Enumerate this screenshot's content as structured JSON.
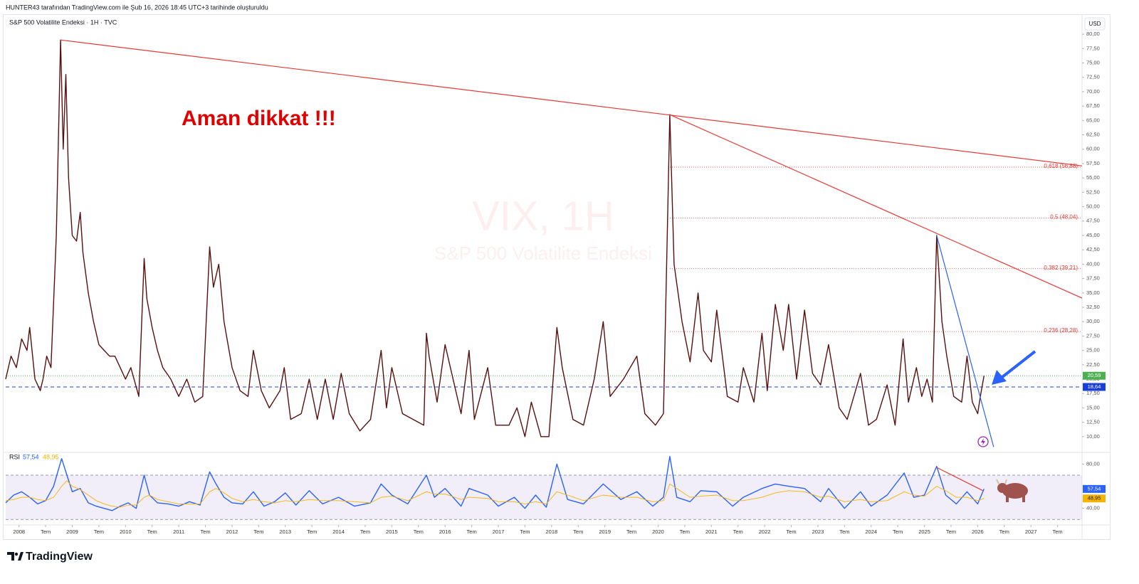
{
  "header": "HUNTER43 tarafından TradingView.com ile Şub 16, 2026 18:45 UTC+3 tarihinde oluşturuldu",
  "footer": "TradingView",
  "chart_data": [
    {
      "type": "line",
      "title": "S&P 500 Volatilite Endeksi · 1H · TVC",
      "watermark": "VIX, 1H",
      "watermark_subtitle": "S&P 500 Volatilite Endeksi",
      "currency": "USD",
      "annotation": "Aman dikkat !!!",
      "grid": false,
      "xlim": [
        2007.75,
        2027.96
      ],
      "ylim": [
        8,
        81
      ],
      "x": [
        2007.75,
        2007.85,
        2007.95,
        2008.05,
        2008.15,
        2008.2,
        2008.3,
        2008.4,
        2008.45,
        2008.52,
        2008.6,
        2008.7,
        2008.78,
        2008.83,
        2008.88,
        2008.93,
        2009.0,
        2009.08,
        2009.15,
        2009.2,
        2009.3,
        2009.4,
        2009.5,
        2009.6,
        2009.7,
        2009.8,
        2009.9,
        2010.0,
        2010.1,
        2010.25,
        2010.35,
        2010.4,
        2010.5,
        2010.6,
        2010.7,
        2010.85,
        2011.0,
        2011.15,
        2011.3,
        2011.45,
        2011.58,
        2011.65,
        2011.75,
        2011.85,
        2012.0,
        2012.15,
        2012.3,
        2012.4,
        2012.55,
        2012.7,
        2012.9,
        2012.98,
        2013.1,
        2013.3,
        2013.45,
        2013.6,
        2013.75,
        2013.9,
        2014.05,
        2014.2,
        2014.4,
        2014.6,
        2014.8,
        2014.9,
        2015.0,
        2015.2,
        2015.4,
        2015.6,
        2015.65,
        2015.7,
        2015.85,
        2016.0,
        2016.1,
        2016.3,
        2016.45,
        2016.55,
        2016.8,
        2016.95,
        2017.2,
        2017.35,
        2017.5,
        2017.62,
        2017.8,
        2017.95,
        2018.1,
        2018.2,
        2018.4,
        2018.6,
        2018.8,
        2018.97,
        2019.1,
        2019.35,
        2019.6,
        2019.75,
        2019.95,
        2020.1,
        2020.22,
        2020.3,
        2020.45,
        2020.6,
        2020.75,
        2020.85,
        2021.0,
        2021.1,
        2021.3,
        2021.5,
        2021.6,
        2021.8,
        2021.95,
        2022.05,
        2022.2,
        2022.35,
        2022.45,
        2022.6,
        2022.75,
        2022.9,
        2023.05,
        2023.2,
        2023.4,
        2023.55,
        2023.8,
        2023.95,
        2024.1,
        2024.3,
        2024.45,
        2024.6,
        2024.7,
        2024.85,
        2024.95,
        2025.05,
        2025.15,
        2025.23,
        2025.33,
        2025.42,
        2025.55,
        2025.7,
        2025.8,
        2025.9,
        2026.0,
        2026.05,
        2026.12
      ],
      "series": [
        {
          "color": "#5a0f0f",
          "values": [
            20,
            24,
            22,
            27,
            25,
            29,
            20,
            18,
            20,
            24,
            22,
            45,
            79,
            60,
            73,
            55,
            45,
            44,
            49,
            42,
            35,
            30,
            26,
            25,
            24,
            24,
            22,
            20,
            22,
            17,
            41,
            34,
            29,
            25,
            22,
            20,
            17,
            20,
            16,
            17,
            43,
            36,
            40,
            30,
            22,
            18,
            17,
            25,
            18,
            15,
            18,
            22,
            13,
            14,
            20,
            13,
            20,
            13,
            21,
            14,
            11,
            13,
            25,
            15,
            22,
            14,
            13,
            12,
            28,
            24,
            16,
            26,
            22,
            14,
            25,
            13,
            22,
            12,
            12,
            15,
            10,
            16,
            10,
            10,
            29,
            22,
            13,
            12,
            20,
            30,
            17,
            20,
            24,
            14,
            12,
            14,
            66,
            40,
            30,
            23,
            35,
            25,
            23,
            32,
            17,
            16,
            22,
            16,
            28,
            18,
            33,
            25,
            33,
            20,
            32,
            21,
            19,
            26,
            15,
            13,
            21,
            12,
            13,
            19,
            12,
            27,
            16,
            22,
            17,
            20,
            16,
            45,
            30,
            24,
            17,
            16,
            24,
            16,
            14,
            17,
            20.59
          ]
        }
      ],
      "xticks": [
        2008,
        {
          "value": 2008.5,
          "label": "Tem"
        },
        2009,
        {
          "value": 2009.5,
          "label": "Tem"
        },
        2010,
        {
          "value": 2010.5,
          "label": "Tem"
        },
        2011,
        {
          "value": 2011.5,
          "label": "Tem"
        },
        2012,
        {
          "value": 2012.5,
          "label": "Tem"
        },
        2013,
        {
          "value": 2013.5,
          "label": "Tem"
        },
        2014,
        {
          "value": 2014.5,
          "label": "Tem"
        },
        2015,
        {
          "value": 2015.5,
          "label": "Tem"
        },
        2016,
        {
          "value": 2016.5,
          "label": "Tem"
        },
        2017,
        {
          "value": 2017.5,
          "label": "Tem"
        },
        2018,
        {
          "value": 2018.5,
          "label": "Tem"
        },
        2019,
        {
          "value": 2019.5,
          "label": "Tem"
        },
        2020,
        {
          "value": 2020.5,
          "label": "Tem"
        },
        2021,
        {
          "value": 2021.5,
          "label": "Tem"
        },
        2022,
        {
          "value": 2022.5,
          "label": "Tem"
        },
        2023,
        {
          "value": 2023.5,
          "label": "Tem"
        },
        2024,
        {
          "value": 2024.5,
          "label": "Tem"
        },
        2025,
        {
          "value": 2025.5,
          "label": "Tem"
        },
        2026,
        {
          "value": 2026.5,
          "label": "Tem"
        },
        2027,
        {
          "value": 2027.5,
          "label": "Tem"
        }
      ],
      "yticks": [
        {
          "value": 10,
          "label": "10,00"
        },
        {
          "value": 12.5,
          "label": "12,50"
        },
        {
          "value": 15,
          "label": "15,00"
        },
        {
          "value": 17.5,
          "label": "17,50"
        },
        {
          "value": 20,
          "label": "20,00"
        },
        {
          "value": 22.5,
          "label": "22,50"
        },
        {
          "value": 25,
          "label": "25,00"
        },
        {
          "value": 27.5,
          "label": "27,50"
        },
        {
          "value": 30,
          "label": "30,00"
        },
        {
          "value": 32.5,
          "label": "32,50"
        },
        {
          "value": 35,
          "label": "35,00"
        },
        {
          "value": 37.5,
          "label": "37,50"
        },
        {
          "value": 40,
          "label": "40,00"
        },
        {
          "value": 42.5,
          "label": "42,50"
        },
        {
          "value": 45,
          "label": "45,00"
        },
        {
          "value": 47.5,
          "label": "47,50"
        },
        {
          "value": 50,
          "label": "50,00"
        },
        {
          "value": 52.5,
          "label": "52,50"
        },
        {
          "value": 55,
          "label": "55,00"
        },
        {
          "value": 57.5,
          "label": "57,50"
        },
        {
          "value": 60,
          "label": "60,00"
        },
        {
          "value": 62.5,
          "label": "62,50"
        },
        {
          "value": 65,
          "label": "65,00"
        },
        {
          "value": 67.5,
          "label": "67,50"
        },
        {
          "value": 70,
          "label": "70,00"
        },
        {
          "value": 72.5,
          "label": "72,50"
        },
        {
          "value": 75,
          "label": "75,00"
        },
        {
          "value": 77.5,
          "label": "77,50"
        },
        {
          "value": 80,
          "label": "80,00"
        }
      ],
      "trendlines": [
        {
          "color": "#e53935",
          "x": [
            2008.78,
            2027.96
          ],
          "y": [
            79,
            57.1
          ]
        },
        {
          "color": "#e53935",
          "x": [
            2020.22,
            2027.96
          ],
          "y": [
            66,
            34.1
          ]
        },
        {
          "color": "#2962ff",
          "x": [
            2025.23,
            2026.3
          ],
          "y": [
            45,
            8.2
          ]
        }
      ],
      "fib": {
        "color": "#e53935",
        "x_start": 2020.22,
        "levels": [
          {
            "value": 56.88,
            "label": "0,618 (56,88)"
          },
          {
            "value": 48.04,
            "label": "0,5 (48,04)"
          },
          {
            "value": 39.21,
            "label": "0,382 (39,21)"
          },
          {
            "value": 28.28,
            "label": "0,236 (28,28)"
          }
        ]
      },
      "price_lines": [
        {
          "value": 20.59,
          "label": "20,59",
          "color": "#4caf50",
          "style": "dotted"
        },
        {
          "value": 18.64,
          "label": "18,64",
          "color": "#1a3fd9",
          "style": "dashed"
        }
      ]
    },
    {
      "type": "line",
      "title": "RSI",
      "ylim": [
        25,
        88
      ],
      "yticks": [
        {
          "value": 80,
          "label": "80,00"
        },
        {
          "value": 40,
          "label": "40,00"
        }
      ],
      "band": [
        70,
        30
      ],
      "x": [
        2007.75,
        2007.9,
        2008.05,
        2008.2,
        2008.35,
        2008.5,
        2008.65,
        2008.8,
        2008.9,
        2009.0,
        2009.15,
        2009.3,
        2009.45,
        2009.6,
        2009.75,
        2009.9,
        2010.05,
        2010.2,
        2010.35,
        2010.45,
        2010.6,
        2010.8,
        2011.0,
        2011.2,
        2011.4,
        2011.58,
        2011.7,
        2011.85,
        2012.0,
        2012.2,
        2012.4,
        2012.6,
        2012.8,
        2013.0,
        2013.2,
        2013.45,
        2013.7,
        2014.0,
        2014.3,
        2014.6,
        2014.8,
        2015.0,
        2015.3,
        2015.65,
        2015.8,
        2016.0,
        2016.3,
        2016.45,
        2016.8,
        2017.0,
        2017.3,
        2017.5,
        2017.7,
        2017.9,
        2018.1,
        2018.3,
        2018.6,
        2018.97,
        2019.3,
        2019.6,
        2019.9,
        2020.1,
        2020.22,
        2020.35,
        2020.6,
        2020.8,
        2021.1,
        2021.4,
        2021.6,
        2021.95,
        2022.2,
        2022.45,
        2022.75,
        2023.05,
        2023.2,
        2023.5,
        2023.8,
        2024.0,
        2024.3,
        2024.62,
        2024.8,
        2025.0,
        2025.23,
        2025.4,
        2025.6,
        2025.8,
        2026.0,
        2026.12
      ],
      "series": [
        {
          "color": "#2962ff",
          "last_label": "57,54",
          "values": [
            45,
            52,
            55,
            50,
            44,
            47,
            60,
            85,
            70,
            55,
            58,
            45,
            42,
            40,
            38,
            42,
            45,
            40,
            70,
            52,
            45,
            44,
            42,
            46,
            43,
            73,
            62,
            50,
            45,
            44,
            55,
            42,
            46,
            54,
            43,
            56,
            44,
            50,
            42,
            45,
            62,
            52,
            44,
            70,
            50,
            58,
            42,
            58,
            52,
            42,
            50,
            40,
            52,
            41,
            80,
            48,
            44,
            62,
            48,
            55,
            42,
            50,
            87,
            50,
            46,
            56,
            55,
            42,
            50,
            58,
            62,
            60,
            58,
            46,
            58,
            40,
            55,
            42,
            52,
            72,
            50,
            52,
            78,
            52,
            44,
            55,
            44,
            57.54
          ]
        },
        {
          "color": "#f5b400",
          "last_label": "48,95",
          "values": [
            47,
            48,
            50,
            50,
            48,
            47,
            50,
            60,
            65,
            60,
            57,
            52,
            47,
            44,
            42,
            41,
            43,
            43,
            50,
            52,
            48,
            46,
            44,
            44,
            44,
            55,
            58,
            54,
            49,
            46,
            48,
            46,
            45,
            47,
            46,
            48,
            47,
            47,
            46,
            45,
            50,
            51,
            47,
            55,
            53,
            53,
            48,
            50,
            49,
            46,
            46,
            44,
            46,
            44,
            55,
            52,
            47,
            52,
            50,
            50,
            46,
            47,
            62,
            58,
            50,
            51,
            52,
            47,
            47,
            50,
            54,
            56,
            55,
            50,
            51,
            46,
            48,
            46,
            47,
            55,
            52,
            51,
            60,
            56,
            50,
            50,
            47,
            48.95
          ]
        }
      ],
      "trendlines": [
        {
          "color": "#e53935",
          "x": [
            2025.23,
            2026.1
          ],
          "y": [
            77,
            56
          ]
        }
      ]
    }
  ]
}
